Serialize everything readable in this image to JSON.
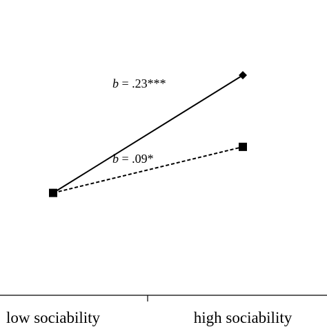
{
  "chart_data": {
    "type": "line",
    "categories": [
      "low sociability",
      "high sociability"
    ],
    "series": [
      {
        "values": [
          0.0,
          0.23
        ],
        "marker": "diamond",
        "line_style": "solid",
        "annotation": {
          "prefix": "b",
          "text": " = .23***"
        }
      },
      {
        "values": [
          0.0,
          0.09
        ],
        "marker": "square",
        "line_style": "dashed",
        "annotation": {
          "prefix": "b",
          "text": " = .09*"
        }
      }
    ],
    "ylim": [
      -0.2,
      0.35
    ],
    "grid": false,
    "colors": {
      "line": "#000000",
      "axis": "#000000"
    }
  }
}
